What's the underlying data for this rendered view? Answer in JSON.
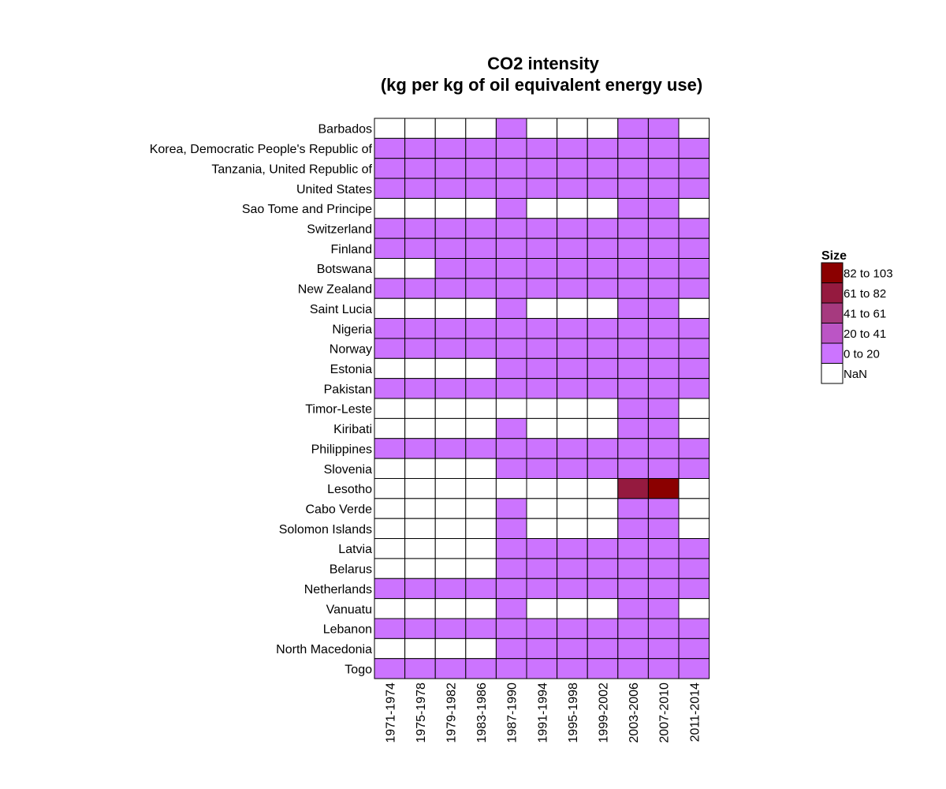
{
  "chart_data": {
    "type": "heatmap",
    "title_lines": [
      "CO2 intensity",
      "(kg per kg of oil equivalent energy use)"
    ],
    "x": [
      "1971-1974",
      "1975-1978",
      "1979-1982",
      "1983-1986",
      "1987-1990",
      "1991-1994",
      "1995-1998",
      "1999-2002",
      "2003-2006",
      "2007-2010",
      "2011-2014"
    ],
    "y": [
      "Barbados",
      "Korea, Democratic People's Republic of",
      "Tanzania, United Republic of",
      "United States",
      "Sao Tome and Principe",
      "Switzerland",
      "Finland",
      "Botswana",
      "New Zealand",
      "Saint Lucia",
      "Nigeria",
      "Norway",
      "Estonia",
      "Pakistan",
      "Timor-Leste",
      "Kiribati",
      "Philippines",
      "Slovenia",
      "Lesotho",
      "Cabo Verde",
      "Solomon Islands",
      "Latvia",
      "Belarus",
      "Netherlands",
      "Vanuatu",
      "Lebanon",
      "North Macedonia",
      "Togo"
    ],
    "bins": [
      {
        "label": "82 to 103",
        "color": "#8b0000"
      },
      {
        "label": "61 to 82",
        "color": "#951a3f"
      },
      {
        "label": "41 to 61",
        "color": "#a63a7f"
      },
      {
        "label": "20 to 41",
        "color": "#bb55c5"
      },
      {
        "label": "0 to 20",
        "color": "#cc74ff"
      },
      {
        "label": "NaN",
        "color": "#ffffff"
      }
    ],
    "legend": {
      "title": "Size",
      "position": "right"
    },
    "grid": false,
    "cells": [
      [
        "NaN",
        "NaN",
        "NaN",
        "NaN",
        "0 to 20",
        "NaN",
        "NaN",
        "NaN",
        "0 to 20",
        "0 to 20",
        "NaN"
      ],
      [
        "0 to 20",
        "0 to 20",
        "0 to 20",
        "0 to 20",
        "0 to 20",
        "0 to 20",
        "0 to 20",
        "0 to 20",
        "0 to 20",
        "0 to 20",
        "0 to 20"
      ],
      [
        "0 to 20",
        "0 to 20",
        "0 to 20",
        "0 to 20",
        "0 to 20",
        "0 to 20",
        "0 to 20",
        "0 to 20",
        "0 to 20",
        "0 to 20",
        "0 to 20"
      ],
      [
        "0 to 20",
        "0 to 20",
        "0 to 20",
        "0 to 20",
        "0 to 20",
        "0 to 20",
        "0 to 20",
        "0 to 20",
        "0 to 20",
        "0 to 20",
        "0 to 20"
      ],
      [
        "NaN",
        "NaN",
        "NaN",
        "NaN",
        "0 to 20",
        "NaN",
        "NaN",
        "NaN",
        "0 to 20",
        "0 to 20",
        "NaN"
      ],
      [
        "0 to 20",
        "0 to 20",
        "0 to 20",
        "0 to 20",
        "0 to 20",
        "0 to 20",
        "0 to 20",
        "0 to 20",
        "0 to 20",
        "0 to 20",
        "0 to 20"
      ],
      [
        "0 to 20",
        "0 to 20",
        "0 to 20",
        "0 to 20",
        "0 to 20",
        "0 to 20",
        "0 to 20",
        "0 to 20",
        "0 to 20",
        "0 to 20",
        "0 to 20"
      ],
      [
        "NaN",
        "NaN",
        "0 to 20",
        "0 to 20",
        "0 to 20",
        "0 to 20",
        "0 to 20",
        "0 to 20",
        "0 to 20",
        "0 to 20",
        "0 to 20"
      ],
      [
        "0 to 20",
        "0 to 20",
        "0 to 20",
        "0 to 20",
        "0 to 20",
        "0 to 20",
        "0 to 20",
        "0 to 20",
        "0 to 20",
        "0 to 20",
        "0 to 20"
      ],
      [
        "NaN",
        "NaN",
        "NaN",
        "NaN",
        "0 to 20",
        "NaN",
        "NaN",
        "NaN",
        "0 to 20",
        "0 to 20",
        "NaN"
      ],
      [
        "0 to 20",
        "0 to 20",
        "0 to 20",
        "0 to 20",
        "0 to 20",
        "0 to 20",
        "0 to 20",
        "0 to 20",
        "0 to 20",
        "0 to 20",
        "0 to 20"
      ],
      [
        "0 to 20",
        "0 to 20",
        "0 to 20",
        "0 to 20",
        "0 to 20",
        "0 to 20",
        "0 to 20",
        "0 to 20",
        "0 to 20",
        "0 to 20",
        "0 to 20"
      ],
      [
        "NaN",
        "NaN",
        "NaN",
        "NaN",
        "0 to 20",
        "0 to 20",
        "0 to 20",
        "0 to 20",
        "0 to 20",
        "0 to 20",
        "0 to 20"
      ],
      [
        "0 to 20",
        "0 to 20",
        "0 to 20",
        "0 to 20",
        "0 to 20",
        "0 to 20",
        "0 to 20",
        "0 to 20",
        "0 to 20",
        "0 to 20",
        "0 to 20"
      ],
      [
        "NaN",
        "NaN",
        "NaN",
        "NaN",
        "NaN",
        "NaN",
        "NaN",
        "NaN",
        "0 to 20",
        "0 to 20",
        "NaN"
      ],
      [
        "NaN",
        "NaN",
        "NaN",
        "NaN",
        "0 to 20",
        "NaN",
        "NaN",
        "NaN",
        "0 to 20",
        "0 to 20",
        "NaN"
      ],
      [
        "0 to 20",
        "0 to 20",
        "0 to 20",
        "0 to 20",
        "0 to 20",
        "0 to 20",
        "0 to 20",
        "0 to 20",
        "0 to 20",
        "0 to 20",
        "0 to 20"
      ],
      [
        "NaN",
        "NaN",
        "NaN",
        "NaN",
        "0 to 20",
        "0 to 20",
        "0 to 20",
        "0 to 20",
        "0 to 20",
        "0 to 20",
        "0 to 20"
      ],
      [
        "NaN",
        "NaN",
        "NaN",
        "NaN",
        "NaN",
        "NaN",
        "NaN",
        "NaN",
        "61 to 82",
        "82 to 103",
        "NaN"
      ],
      [
        "NaN",
        "NaN",
        "NaN",
        "NaN",
        "0 to 20",
        "NaN",
        "NaN",
        "NaN",
        "0 to 20",
        "0 to 20",
        "NaN"
      ],
      [
        "NaN",
        "NaN",
        "NaN",
        "NaN",
        "0 to 20",
        "NaN",
        "NaN",
        "NaN",
        "0 to 20",
        "0 to 20",
        "NaN"
      ],
      [
        "NaN",
        "NaN",
        "NaN",
        "NaN",
        "0 to 20",
        "0 to 20",
        "0 to 20",
        "0 to 20",
        "0 to 20",
        "0 to 20",
        "0 to 20"
      ],
      [
        "NaN",
        "NaN",
        "NaN",
        "NaN",
        "0 to 20",
        "0 to 20",
        "0 to 20",
        "0 to 20",
        "0 to 20",
        "0 to 20",
        "0 to 20"
      ],
      [
        "0 to 20",
        "0 to 20",
        "0 to 20",
        "0 to 20",
        "0 to 20",
        "0 to 20",
        "0 to 20",
        "0 to 20",
        "0 to 20",
        "0 to 20",
        "0 to 20"
      ],
      [
        "NaN",
        "NaN",
        "NaN",
        "NaN",
        "0 to 20",
        "NaN",
        "NaN",
        "NaN",
        "0 to 20",
        "0 to 20",
        "NaN"
      ],
      [
        "0 to 20",
        "0 to 20",
        "0 to 20",
        "0 to 20",
        "0 to 20",
        "0 to 20",
        "0 to 20",
        "0 to 20",
        "0 to 20",
        "0 to 20",
        "0 to 20"
      ],
      [
        "NaN",
        "NaN",
        "NaN",
        "NaN",
        "0 to 20",
        "0 to 20",
        "0 to 20",
        "0 to 20",
        "0 to 20",
        "0 to 20",
        "0 to 20"
      ],
      [
        "0 to 20",
        "0 to 20",
        "0 to 20",
        "0 to 20",
        "0 to 20",
        "0 to 20",
        "0 to 20",
        "0 to 20",
        "0 to 20",
        "0 to 20",
        "0 to 20"
      ]
    ]
  }
}
